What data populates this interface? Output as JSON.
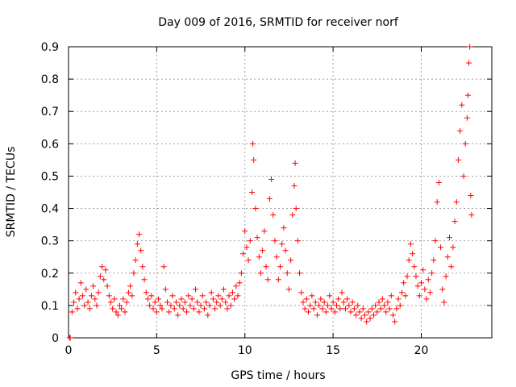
{
  "chart_data": {
    "type": "scatter",
    "title": "Day 009 of 2016, SRMTID for receiver norf",
    "xlabel": "GPS time / hours",
    "ylabel": "SRMTID / TECUs",
    "xlim": [
      0,
      24
    ],
    "ylim": [
      0,
      0.9
    ],
    "xticks": [
      0,
      5,
      10,
      15,
      20
    ],
    "yticks": [
      0,
      0.1,
      0.2,
      0.3,
      0.4,
      0.5,
      0.6,
      0.7,
      0.8,
      0.9
    ],
    "grid": true,
    "marker": "+",
    "marker_color": "#ff0000",
    "series": [
      {
        "name": "SRMTID",
        "points": [
          [
            0.05,
            0.0
          ],
          [
            0.1,
            0.0
          ],
          [
            0.2,
            0.08
          ],
          [
            0.3,
            0.11
          ],
          [
            0.4,
            0.14
          ],
          [
            0.5,
            0.09
          ],
          [
            0.6,
            0.12
          ],
          [
            0.7,
            0.17
          ],
          [
            0.8,
            0.13
          ],
          [
            0.9,
            0.1
          ],
          [
            1.0,
            0.15
          ],
          [
            1.1,
            0.11
          ],
          [
            1.2,
            0.09
          ],
          [
            1.3,
            0.13
          ],
          [
            1.4,
            0.16
          ],
          [
            1.5,
            0.12
          ],
          [
            1.6,
            0.1
          ],
          [
            1.7,
            0.14
          ],
          [
            1.8,
            0.19
          ],
          [
            1.9,
            0.22
          ],
          [
            2.0,
            0.18
          ],
          [
            2.1,
            0.21
          ],
          [
            2.2,
            0.16
          ],
          [
            2.3,
            0.13
          ],
          [
            2.4,
            0.11
          ],
          [
            2.5,
            0.09
          ],
          [
            2.6,
            0.12
          ],
          [
            2.7,
            0.08
          ],
          [
            2.8,
            0.07
          ],
          [
            2.9,
            0.1
          ],
          [
            3.0,
            0.09
          ],
          [
            3.1,
            0.12
          ],
          [
            3.2,
            0.08
          ],
          [
            3.3,
            0.11
          ],
          [
            3.4,
            0.14
          ],
          [
            3.5,
            0.16
          ],
          [
            3.6,
            0.13
          ],
          [
            3.7,
            0.2
          ],
          [
            3.8,
            0.24
          ],
          [
            3.9,
            0.29
          ],
          [
            4.0,
            0.32
          ],
          [
            4.1,
            0.27
          ],
          [
            4.2,
            0.22
          ],
          [
            4.3,
            0.18
          ],
          [
            4.4,
            0.14
          ],
          [
            4.5,
            0.12
          ],
          [
            4.6,
            0.1
          ],
          [
            4.7,
            0.13
          ],
          [
            4.8,
            0.09
          ],
          [
            4.9,
            0.11
          ],
          [
            5.0,
            0.08
          ],
          [
            5.1,
            0.12
          ],
          [
            5.2,
            0.1
          ],
          [
            5.3,
            0.09
          ],
          [
            5.4,
            0.22
          ],
          [
            5.5,
            0.15
          ],
          [
            5.6,
            0.11
          ],
          [
            5.7,
            0.08
          ],
          [
            5.8,
            0.1
          ],
          [
            5.9,
            0.13
          ],
          [
            6.0,
            0.09
          ],
          [
            6.1,
            0.11
          ],
          [
            6.2,
            0.07
          ],
          [
            6.3,
            0.1
          ],
          [
            6.4,
            0.12
          ],
          [
            6.5,
            0.09
          ],
          [
            6.6,
            0.11
          ],
          [
            6.7,
            0.08
          ],
          [
            6.8,
            0.13
          ],
          [
            6.9,
            0.1
          ],
          [
            7.0,
            0.12
          ],
          [
            7.1,
            0.09
          ],
          [
            7.2,
            0.15
          ],
          [
            7.3,
            0.11
          ],
          [
            7.4,
            0.08
          ],
          [
            7.5,
            0.1
          ],
          [
            7.6,
            0.13
          ],
          [
            7.7,
            0.09
          ],
          [
            7.8,
            0.11
          ],
          [
            7.9,
            0.07
          ],
          [
            8.0,
            0.1
          ],
          [
            8.1,
            0.14
          ],
          [
            8.2,
            0.12
          ],
          [
            8.3,
            0.09
          ],
          [
            8.4,
            0.11
          ],
          [
            8.5,
            0.13
          ],
          [
            8.6,
            0.1
          ],
          [
            8.7,
            0.12
          ],
          [
            8.8,
            0.15
          ],
          [
            8.9,
            0.11
          ],
          [
            9.0,
            0.09
          ],
          [
            9.1,
            0.13
          ],
          [
            9.2,
            0.1
          ],
          [
            9.3,
            0.14
          ],
          [
            9.4,
            0.12
          ],
          [
            9.5,
            0.16
          ],
          [
            9.6,
            0.13
          ],
          [
            9.7,
            0.17
          ],
          [
            9.8,
            0.2
          ],
          [
            9.9,
            0.26
          ],
          [
            10.0,
            0.33
          ],
          [
            10.1,
            0.28
          ],
          [
            10.2,
            0.24
          ],
          [
            10.3,
            0.3
          ],
          [
            10.4,
            0.45
          ],
          [
            10.45,
            0.6
          ],
          [
            10.5,
            0.55
          ],
          [
            10.6,
            0.4
          ],
          [
            10.7,
            0.31
          ],
          [
            10.8,
            0.25
          ],
          [
            10.9,
            0.2
          ],
          [
            11.0,
            0.27
          ],
          [
            11.1,
            0.33
          ],
          [
            11.2,
            0.22
          ],
          [
            11.3,
            0.18
          ],
          [
            11.4,
            0.43
          ],
          [
            11.5,
            0.49
          ],
          [
            11.6,
            0.38
          ],
          [
            11.7,
            0.3
          ],
          [
            11.8,
            0.25
          ],
          [
            11.9,
            0.18
          ],
          [
            12.0,
            0.22
          ],
          [
            12.1,
            0.29
          ],
          [
            12.2,
            0.34
          ],
          [
            12.3,
            0.27
          ],
          [
            12.4,
            0.2
          ],
          [
            12.5,
            0.15
          ],
          [
            12.6,
            0.24
          ],
          [
            12.7,
            0.38
          ],
          [
            12.8,
            0.47
          ],
          [
            12.85,
            0.54
          ],
          [
            12.9,
            0.4
          ],
          [
            13.0,
            0.3
          ],
          [
            13.1,
            0.2
          ],
          [
            13.2,
            0.14
          ],
          [
            13.3,
            0.11
          ],
          [
            13.4,
            0.09
          ],
          [
            13.5,
            0.12
          ],
          [
            13.6,
            0.08
          ],
          [
            13.7,
            0.1
          ],
          [
            13.8,
            0.13
          ],
          [
            13.9,
            0.09
          ],
          [
            14.0,
            0.11
          ],
          [
            14.1,
            0.07
          ],
          [
            14.2,
            0.1
          ],
          [
            14.3,
            0.12
          ],
          [
            14.4,
            0.09
          ],
          [
            14.5,
            0.11
          ],
          [
            14.6,
            0.08
          ],
          [
            14.7,
            0.1
          ],
          [
            14.8,
            0.13
          ],
          [
            14.9,
            0.09
          ],
          [
            15.0,
            0.11
          ],
          [
            15.1,
            0.08
          ],
          [
            15.2,
            0.1
          ],
          [
            15.3,
            0.12
          ],
          [
            15.4,
            0.09
          ],
          [
            15.5,
            0.14
          ],
          [
            15.6,
            0.11
          ],
          [
            15.7,
            0.09
          ],
          [
            15.8,
            0.12
          ],
          [
            15.9,
            0.1
          ],
          [
            16.0,
            0.08
          ],
          [
            16.1,
            0.11
          ],
          [
            16.2,
            0.09
          ],
          [
            16.3,
            0.07
          ],
          [
            16.4,
            0.1
          ],
          [
            16.5,
            0.08
          ],
          [
            16.6,
            0.06
          ],
          [
            16.7,
            0.09
          ],
          [
            16.8,
            0.07
          ],
          [
            16.9,
            0.05
          ],
          [
            17.0,
            0.08
          ],
          [
            17.1,
            0.06
          ],
          [
            17.2,
            0.09
          ],
          [
            17.3,
            0.07
          ],
          [
            17.4,
            0.1
          ],
          [
            17.5,
            0.08
          ],
          [
            17.6,
            0.11
          ],
          [
            17.7,
            0.09
          ],
          [
            17.8,
            0.12
          ],
          [
            17.9,
            0.1
          ],
          [
            18.0,
            0.08
          ],
          [
            18.1,
            0.11
          ],
          [
            18.2,
            0.09
          ],
          [
            18.3,
            0.13
          ],
          [
            18.4,
            0.07
          ],
          [
            18.5,
            0.05
          ],
          [
            18.6,
            0.09
          ],
          [
            18.7,
            0.12
          ],
          [
            18.8,
            0.1
          ],
          [
            18.9,
            0.14
          ],
          [
            19.0,
            0.17
          ],
          [
            19.1,
            0.13
          ],
          [
            19.2,
            0.19
          ],
          [
            19.3,
            0.24
          ],
          [
            19.4,
            0.29
          ],
          [
            19.5,
            0.26
          ],
          [
            19.6,
            0.22
          ],
          [
            19.7,
            0.19
          ],
          [
            19.8,
            0.16
          ],
          [
            19.9,
            0.13
          ],
          [
            20.0,
            0.17
          ],
          [
            20.1,
            0.21
          ],
          [
            20.2,
            0.15
          ],
          [
            20.3,
            0.12
          ],
          [
            20.4,
            0.18
          ],
          [
            20.5,
            0.14
          ],
          [
            20.6,
            0.2
          ],
          [
            20.7,
            0.24
          ],
          [
            20.8,
            0.3
          ],
          [
            20.9,
            0.42
          ],
          [
            21.0,
            0.48
          ],
          [
            21.1,
            0.28
          ],
          [
            21.2,
            0.15
          ],
          [
            21.3,
            0.11
          ],
          [
            21.4,
            0.19
          ],
          [
            21.5,
            0.25
          ],
          [
            21.6,
            0.31
          ],
          [
            21.7,
            0.22
          ],
          [
            21.8,
            0.28
          ],
          [
            21.9,
            0.36
          ],
          [
            22.0,
            0.42
          ],
          [
            22.1,
            0.55
          ],
          [
            22.2,
            0.64
          ],
          [
            22.3,
            0.72
          ],
          [
            22.4,
            0.5
          ],
          [
            22.5,
            0.6
          ],
          [
            22.6,
            0.68
          ],
          [
            22.65,
            0.75
          ],
          [
            22.7,
            0.85
          ],
          [
            22.75,
            0.9
          ],
          [
            22.8,
            0.44
          ],
          [
            22.85,
            0.38
          ]
        ]
      }
    ]
  }
}
